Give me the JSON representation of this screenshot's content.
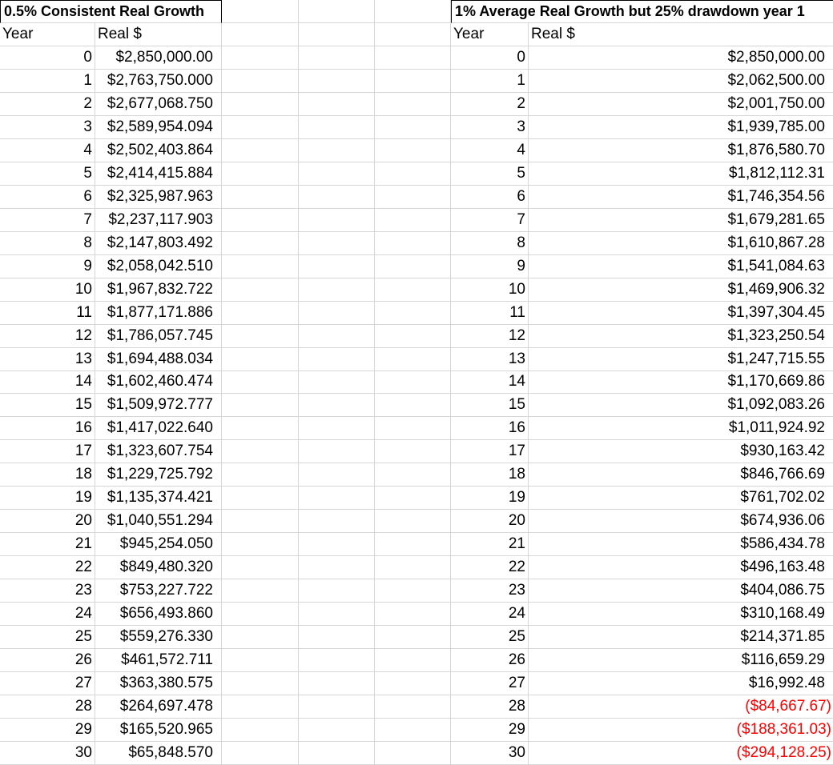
{
  "colors": {
    "negative_text": "#ff0000",
    "gridline": "#d6d6d6",
    "title_border": "#000000"
  },
  "left_table": {
    "title": "0.5% Consistent Real Growth",
    "year_header": "Year",
    "value_header": "Real $",
    "rows": [
      {
        "year": "0",
        "value": "$2,850,000.00",
        "negative": false
      },
      {
        "year": "1",
        "value": "$2,763,750.000",
        "negative": false
      },
      {
        "year": "2",
        "value": "$2,677,068.750",
        "negative": false
      },
      {
        "year": "3",
        "value": "$2,589,954.094",
        "negative": false
      },
      {
        "year": "4",
        "value": "$2,502,403.864",
        "negative": false
      },
      {
        "year": "5",
        "value": "$2,414,415.884",
        "negative": false
      },
      {
        "year": "6",
        "value": "$2,325,987.963",
        "negative": false
      },
      {
        "year": "7",
        "value": "$2,237,117.903",
        "negative": false
      },
      {
        "year": "8",
        "value": "$2,147,803.492",
        "negative": false
      },
      {
        "year": "9",
        "value": "$2,058,042.510",
        "negative": false
      },
      {
        "year": "10",
        "value": "$1,967,832.722",
        "negative": false
      },
      {
        "year": "11",
        "value": "$1,877,171.886",
        "negative": false
      },
      {
        "year": "12",
        "value": "$1,786,057.745",
        "negative": false
      },
      {
        "year": "13",
        "value": "$1,694,488.034",
        "negative": false
      },
      {
        "year": "14",
        "value": "$1,602,460.474",
        "negative": false
      },
      {
        "year": "15",
        "value": "$1,509,972.777",
        "negative": false
      },
      {
        "year": "16",
        "value": "$1,417,022.640",
        "negative": false
      },
      {
        "year": "17",
        "value": "$1,323,607.754",
        "negative": false
      },
      {
        "year": "18",
        "value": "$1,229,725.792",
        "negative": false
      },
      {
        "year": "19",
        "value": "$1,135,374.421",
        "negative": false
      },
      {
        "year": "20",
        "value": "$1,040,551.294",
        "negative": false
      },
      {
        "year": "21",
        "value": "$945,254.050",
        "negative": false
      },
      {
        "year": "22",
        "value": "$849,480.320",
        "negative": false
      },
      {
        "year": "23",
        "value": "$753,227.722",
        "negative": false
      },
      {
        "year": "24",
        "value": "$656,493.860",
        "negative": false
      },
      {
        "year": "25",
        "value": "$559,276.330",
        "negative": false
      },
      {
        "year": "26",
        "value": "$461,572.711",
        "negative": false
      },
      {
        "year": "27",
        "value": "$363,380.575",
        "negative": false
      },
      {
        "year": "28",
        "value": "$264,697.478",
        "negative": false
      },
      {
        "year": "29",
        "value": "$165,520.965",
        "negative": false
      },
      {
        "year": "30",
        "value": "$65,848.570",
        "negative": false
      }
    ]
  },
  "right_table": {
    "title": "1% Average Real Growth but 25% drawdown year 1",
    "year_header": "Year",
    "value_header": "Real $",
    "rows": [
      {
        "year": "0",
        "value": "$2,850,000.00",
        "negative": false
      },
      {
        "year": "1",
        "value": "$2,062,500.00",
        "negative": false
      },
      {
        "year": "2",
        "value": "$2,001,750.00",
        "negative": false
      },
      {
        "year": "3",
        "value": "$1,939,785.00",
        "negative": false
      },
      {
        "year": "4",
        "value": "$1,876,580.70",
        "negative": false
      },
      {
        "year": "5",
        "value": "$1,812,112.31",
        "negative": false
      },
      {
        "year": "6",
        "value": "$1,746,354.56",
        "negative": false
      },
      {
        "year": "7",
        "value": "$1,679,281.65",
        "negative": false
      },
      {
        "year": "8",
        "value": "$1,610,867.28",
        "negative": false
      },
      {
        "year": "9",
        "value": "$1,541,084.63",
        "negative": false
      },
      {
        "year": "10",
        "value": "$1,469,906.32",
        "negative": false
      },
      {
        "year": "11",
        "value": "$1,397,304.45",
        "negative": false
      },
      {
        "year": "12",
        "value": "$1,323,250.54",
        "negative": false
      },
      {
        "year": "13",
        "value": "$1,247,715.55",
        "negative": false
      },
      {
        "year": "14",
        "value": "$1,170,669.86",
        "negative": false
      },
      {
        "year": "15",
        "value": "$1,092,083.26",
        "negative": false
      },
      {
        "year": "16",
        "value": "$1,011,924.92",
        "negative": false
      },
      {
        "year": "17",
        "value": "$930,163.42",
        "negative": false
      },
      {
        "year": "18",
        "value": "$846,766.69",
        "negative": false
      },
      {
        "year": "19",
        "value": "$761,702.02",
        "negative": false
      },
      {
        "year": "20",
        "value": "$674,936.06",
        "negative": false
      },
      {
        "year": "21",
        "value": "$586,434.78",
        "negative": false
      },
      {
        "year": "22",
        "value": "$496,163.48",
        "negative": false
      },
      {
        "year": "23",
        "value": "$404,086.75",
        "negative": false
      },
      {
        "year": "24",
        "value": "$310,168.49",
        "negative": false
      },
      {
        "year": "25",
        "value": "$214,371.85",
        "negative": false
      },
      {
        "year": "26",
        "value": "$116,659.29",
        "negative": false
      },
      {
        "year": "27",
        "value": "$16,992.48",
        "negative": false
      },
      {
        "year": "28",
        "value": "($84,667.67)",
        "negative": true
      },
      {
        "year": "29",
        "value": "($188,361.03)",
        "negative": true
      },
      {
        "year": "30",
        "value": "($294,128.25)",
        "negative": true
      }
    ]
  }
}
